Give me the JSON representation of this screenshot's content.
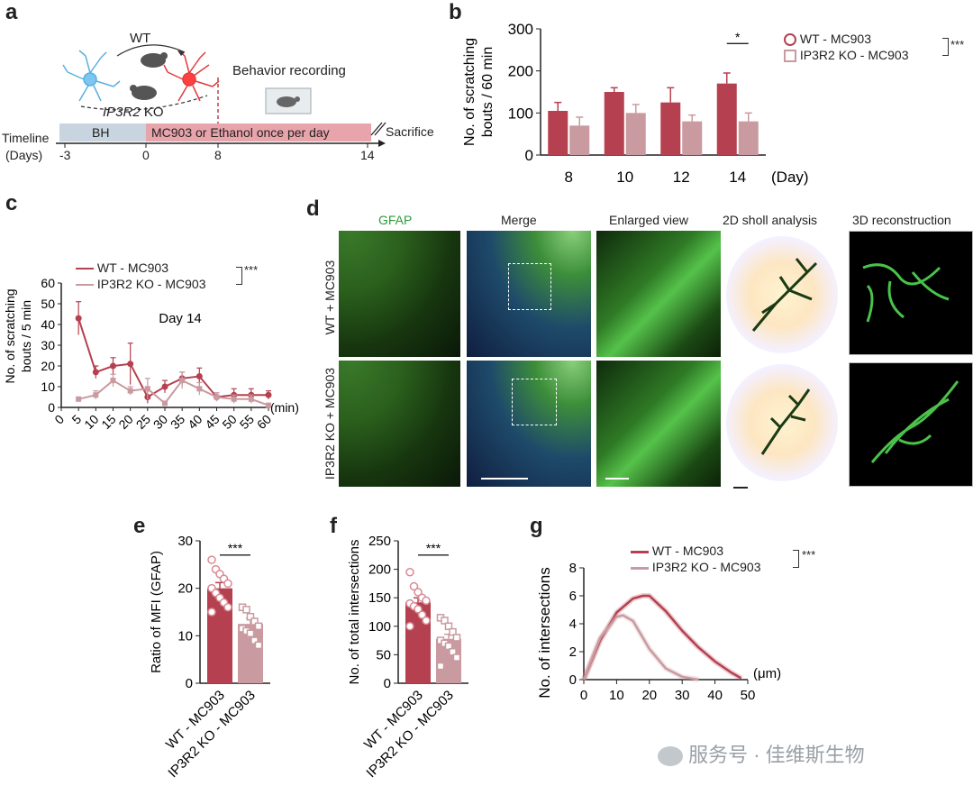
{
  "panels": {
    "a": "a",
    "b": "b",
    "c": "c",
    "d": "d",
    "e": "e",
    "f": "f",
    "g": "g"
  },
  "panel_a": {
    "wt_label": "WT",
    "ko_label": "IP3R2",
    "ko_suffix": "KO",
    "behavior": "Behavior recording",
    "timeline": "Timeline",
    "days": "(Days)",
    "bh": "BH",
    "treatment": "MC903 or Ethanol once per day",
    "sacrifice": "Sacrifice",
    "ticks": [
      "-3",
      "0",
      "8",
      "14"
    ]
  },
  "panel_d": {
    "col_headers": [
      "GFAP",
      "Merge",
      "Enlarged view",
      "2D sholl analysis",
      "3D reconstruction"
    ],
    "row_labels": [
      "WT + MC903",
      "IP3R2 KO + MC903"
    ]
  },
  "legend": {
    "wt": "WT - MC903",
    "ko": "IP3R2 KO - MC903",
    "sig": "***"
  },
  "colors": {
    "wt": "#b5404f",
    "ko": "#c99aa0",
    "wt_light": "#d98a94"
  },
  "watermark": "服务号 · 佳维斯生物",
  "chart_data": [
    {
      "id": "b",
      "type": "bar",
      "title": "",
      "xlabel": "(Day)",
      "ylabel": "No. of scratching bouts / 60 min",
      "categories": [
        "8",
        "10",
        "12",
        "14"
      ],
      "ylim": [
        0,
        300
      ],
      "yticks": [
        "0",
        "100",
        "200",
        "300"
      ],
      "series": [
        {
          "name": "WT - MC903",
          "values": [
            105,
            150,
            125,
            170
          ],
          "errors": [
            20,
            10,
            35,
            25
          ]
        },
        {
          "name": "IP3R2 KO - MC903",
          "values": [
            70,
            100,
            80,
            80
          ],
          "errors": [
            20,
            20,
            15,
            20
          ]
        }
      ],
      "annotation": "*"
    },
    {
      "id": "c",
      "type": "line",
      "title": "Day 14",
      "xlabel": "(min)",
      "ylabel": "No. of scratching bouts / 5 min",
      "x": [
        5,
        10,
        15,
        20,
        25,
        30,
        35,
        40,
        45,
        50,
        55,
        60
      ],
      "xticks": [
        "0",
        "5",
        "10",
        "15",
        "20",
        "25",
        "30",
        "35",
        "40",
        "45",
        "50",
        "55",
        "60"
      ],
      "ylim": [
        0,
        60
      ],
      "yticks": [
        "0",
        "10",
        "20",
        "30",
        "40",
        "50",
        "60"
      ],
      "series": [
        {
          "name": "WT - MC903",
          "values": [
            43,
            17,
            20,
            21,
            5,
            10,
            14,
            15,
            5,
            6,
            6,
            6
          ],
          "errors": [
            8,
            3,
            4,
            10,
            3,
            3,
            3,
            4,
            2,
            3,
            3,
            2
          ]
        },
        {
          "name": "IP3R2 KO - MC903",
          "values": [
            4,
            6,
            13,
            8,
            9,
            2,
            13,
            9,
            5,
            4,
            4,
            1
          ],
          "errors": [
            1,
            2,
            3,
            2,
            5,
            1,
            4,
            3,
            2,
            2,
            2,
            1
          ]
        }
      ]
    },
    {
      "id": "e",
      "type": "bar",
      "ylabel": "Ratio of MFI (GFAP)",
      "categories": [
        "WT - MC903",
        "IP3R2 KO - MC903"
      ],
      "values": [
        20,
        12.5
      ],
      "errors": [
        1.2,
        1.2
      ],
      "ylim": [
        0,
        30
      ],
      "yticks": [
        "0",
        "10",
        "20",
        "30"
      ],
      "points": [
        [
          26,
          24,
          23,
          22,
          21,
          20,
          19,
          18,
          17,
          16,
          15
        ],
        [
          16,
          15.5,
          14,
          13,
          12,
          11.5,
          11,
          10.5,
          9,
          8
        ]
      ],
      "annotation": "***"
    },
    {
      "id": "f",
      "type": "bar",
      "ylabel": "No. of total intersections",
      "categories": [
        "WT - MC903",
        "IP3R2 KO - MC903"
      ],
      "values": [
        142,
        78
      ],
      "errors": [
        8,
        8
      ],
      "ylim": [
        0,
        250
      ],
      "yticks": [
        "0",
        "50",
        "100",
        "150",
        "200",
        "250"
      ],
      "points": [
        [
          195,
          170,
          160,
          150,
          145,
          140,
          135,
          130,
          120,
          110,
          100
        ],
        [
          115,
          110,
          100,
          90,
          80,
          75,
          70,
          65,
          55,
          45,
          30
        ]
      ],
      "annotation": "***"
    },
    {
      "id": "g",
      "type": "line",
      "xlabel": "(μm)",
      "ylabel": "No. of intersections",
      "xlim": [
        0,
        50
      ],
      "ylim": [
        0,
        8
      ],
      "xticks": [
        "0",
        "10",
        "20",
        "30",
        "40",
        "50"
      ],
      "yticks": [
        "0",
        "2",
        "4",
        "6",
        "8"
      ],
      "series": [
        {
          "name": "WT - MC903",
          "x": [
            0,
            5,
            10,
            15,
            18,
            20,
            25,
            30,
            35,
            40,
            45,
            48
          ],
          "values": [
            0,
            2.8,
            4.8,
            5.8,
            6.0,
            6.0,
            4.9,
            3.5,
            2.3,
            1.3,
            0.5,
            0.1
          ]
        },
        {
          "name": "IP3R2 KO - MC903",
          "x": [
            0,
            5,
            10,
            12,
            15,
            20,
            25,
            30,
            35
          ],
          "values": [
            0,
            3.0,
            4.5,
            4.6,
            4.2,
            2.2,
            0.8,
            0.2,
            0
          ]
        }
      ]
    }
  ]
}
